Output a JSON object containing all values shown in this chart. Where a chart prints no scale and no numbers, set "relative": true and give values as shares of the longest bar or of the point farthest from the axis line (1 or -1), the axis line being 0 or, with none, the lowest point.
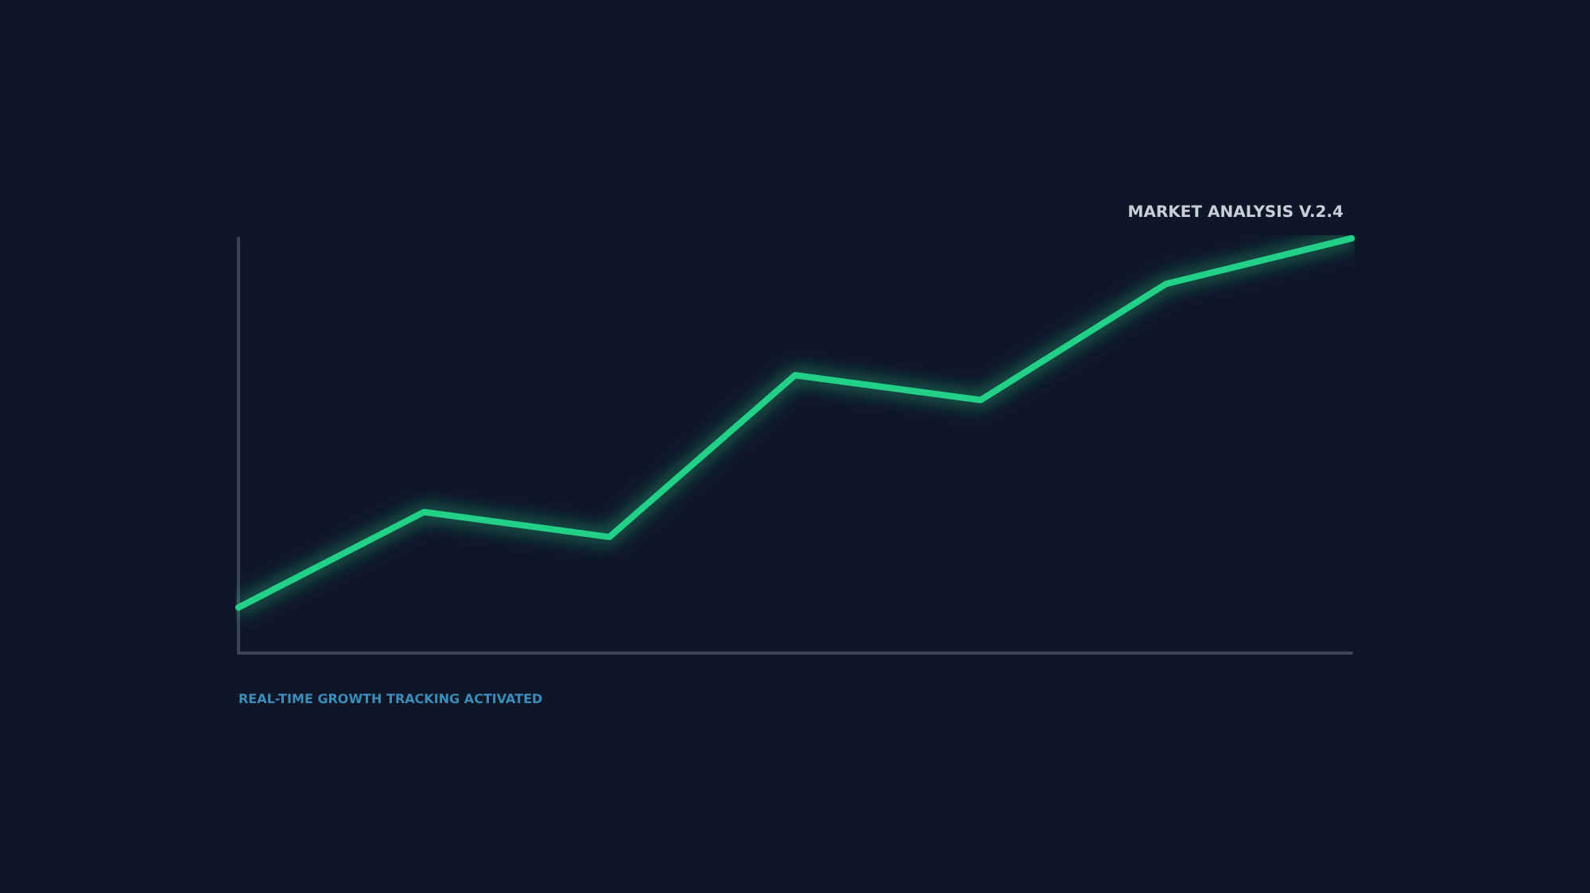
{
  "chart_data": {
    "type": "line",
    "title": "MARKET ANALYSIS V.2.4",
    "annotations": [
      "REAL-TIME GROWTH TRACKING ACTIVATED"
    ],
    "relative": true,
    "categories": [
      null,
      null,
      null,
      null,
      null,
      null,
      null
    ],
    "series": [
      {
        "color": "#22d187",
        "values": [
          0.11,
          0.34,
          0.28,
          0.67,
          0.61,
          0.89,
          1.0
        ]
      }
    ],
    "grid": false,
    "marker": "none",
    "line_style": "solid"
  }
}
